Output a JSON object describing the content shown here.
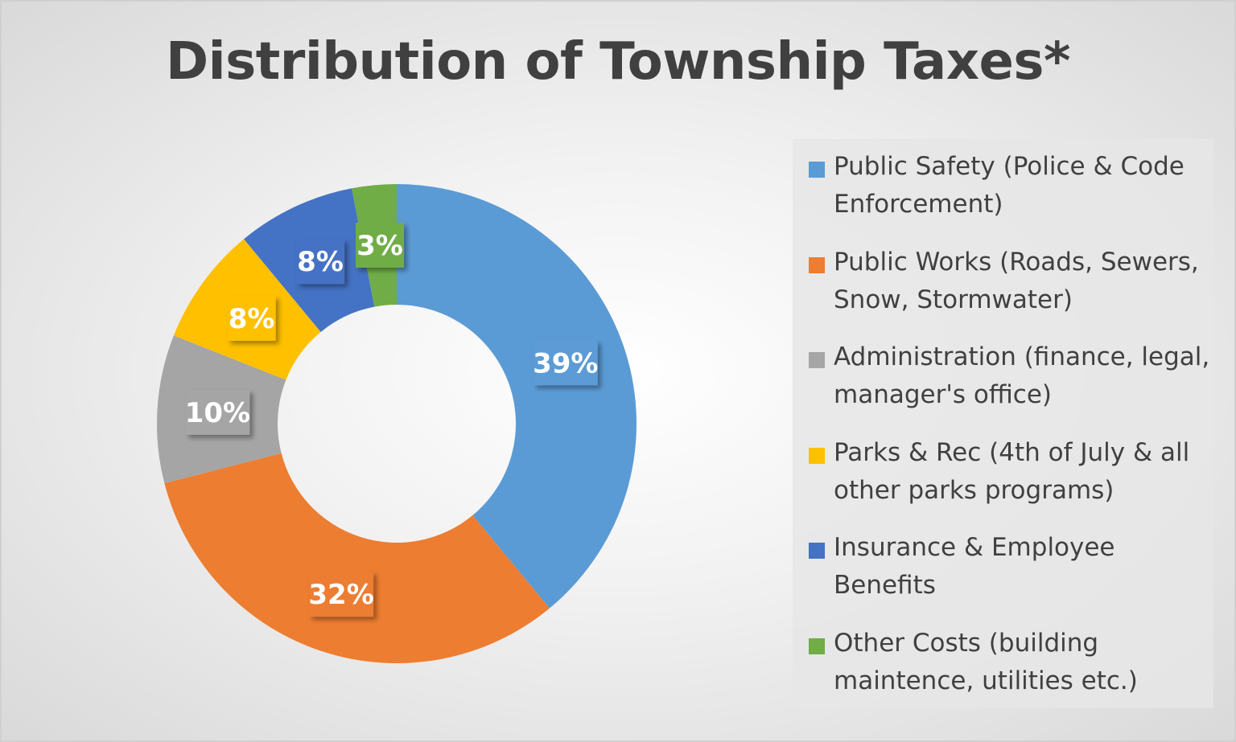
{
  "chart_data": {
    "type": "pie",
    "variant": "donut",
    "title": "Distribution of Township Taxes*",
    "categories": [
      "Public Safety (Police & Code Enforcement)",
      "Public Works (Roads, Sewers, Snow, Stormwater)",
      "Administration (finance, legal, manager's office)",
      "Parks & Rec (4th of July & all other parks programs)",
      "Insurance & Employee Benefits",
      "Other Costs (building maintence, utilities etc.)"
    ],
    "values": [
      39,
      32,
      10,
      8,
      8,
      3
    ],
    "data_labels": [
      "39%",
      "32%",
      "10%",
      "8%",
      "8%",
      "3%"
    ],
    "colors": [
      "#5B9BD5",
      "#ED7D31",
      "#A5A5A5",
      "#FFC000",
      "#4472C4",
      "#70AD47"
    ],
    "legend_placement": "right",
    "start_angle": "top, clockwise"
  }
}
